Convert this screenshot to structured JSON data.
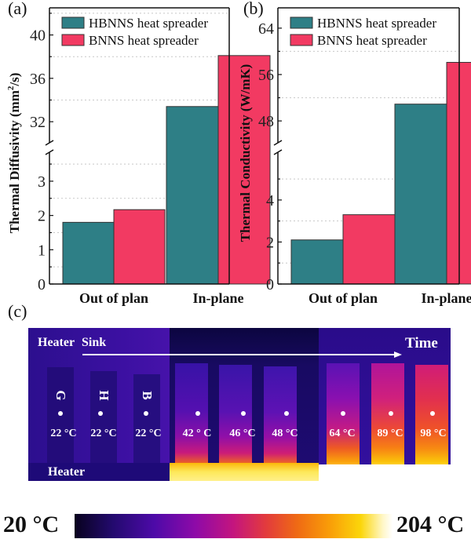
{
  "panels": {
    "a": "(a)",
    "b": "(b)",
    "c": "(c)"
  },
  "chart_data": [
    {
      "type": "bar",
      "panel": "(a)",
      "title": "",
      "xlabel": "",
      "ylabel": "Thermal Diffusivity (mm²/s)",
      "ylabel_parts": {
        "main": "Thermal Diffusivity (mm",
        "sup": "2",
        "tail": "/s)"
      },
      "categories": [
        "Out of plan",
        "In-plane"
      ],
      "series": [
        {
          "name": "HBNNS heat spreader",
          "color": "#2e7f86",
          "values": [
            1.8,
            33.4
          ]
        },
        {
          "name": "BNNS heat spreader",
          "color": "#f23a62",
          "values": [
            2.17,
            38.1
          ]
        }
      ],
      "broken_axis": true,
      "lower_range": [
        0,
        3.8
      ],
      "upper_range": [
        30.2,
        42.5
      ],
      "lower_ticks": [
        "0",
        "1",
        "2",
        "3"
      ],
      "upper_ticks": [
        "32",
        "36",
        "40"
      ],
      "lower_tick_values": [
        0,
        1,
        2,
        3
      ],
      "upper_tick_values": [
        32,
        36,
        40
      ],
      "lower_grid_values": [
        0.5,
        1.5,
        2.5,
        3.5
      ],
      "upper_grid_values": [
        34,
        38,
        42
      ],
      "grid": "dotted minor gridlines",
      "legend_position": "top-left"
    },
    {
      "type": "bar",
      "panel": "(b)",
      "title": "",
      "xlabel": "",
      "ylabel": "Thermal Conductivity (W/mK)",
      "categories": [
        "Out of plan",
        "In-plane"
      ],
      "series": [
        {
          "name": "HBNNS heat spreader",
          "color": "#2e7f86",
          "values": [
            2.1,
            50.9
          ]
        },
        {
          "name": "BNNS heat spreader",
          "color": "#f23a62",
          "values": [
            3.3,
            58.1
          ]
        }
      ],
      "broken_axis": true,
      "lower_range": [
        0,
        6.2
      ],
      "upper_range": [
        44.5,
        67.5
      ],
      "lower_ticks": [
        "0",
        "2",
        "4"
      ],
      "upper_ticks": [
        "48",
        "56",
        "64"
      ],
      "lower_tick_values": [
        0,
        2,
        4
      ],
      "upper_tick_values": [
        48,
        56,
        64
      ],
      "lower_grid_values": [
        1,
        3,
        5
      ],
      "upper_grid_values": [
        52,
        60
      ],
      "grid": "dotted minor gridlines",
      "legend_position": "top-left"
    }
  ],
  "thermal": {
    "header_left": "Heater",
    "header_sink": "Sink",
    "time_label": "Time",
    "heater_label": "Heater",
    "strip_letters": [
      "G",
      "H",
      "B"
    ],
    "groups": [
      {
        "stage": "initial",
        "temps": [
          "22 °C",
          "22 °C",
          "22 °C"
        ]
      },
      {
        "stage": "middle",
        "temps": [
          "42 ° C",
          "46 °C",
          "48 °C"
        ]
      },
      {
        "stage": "late",
        "temps": [
          "64 °C",
          "89 °C",
          "98 °C"
        ]
      }
    ],
    "colorbar": {
      "min_label": "20 °C",
      "max_label": "204 °C",
      "min_value": 20,
      "max_value": 204,
      "palette": "ironbow"
    }
  },
  "colors": {
    "hbnns": "#2e7f86",
    "bnns": "#f23a62",
    "grid": "#c8c8c8"
  }
}
